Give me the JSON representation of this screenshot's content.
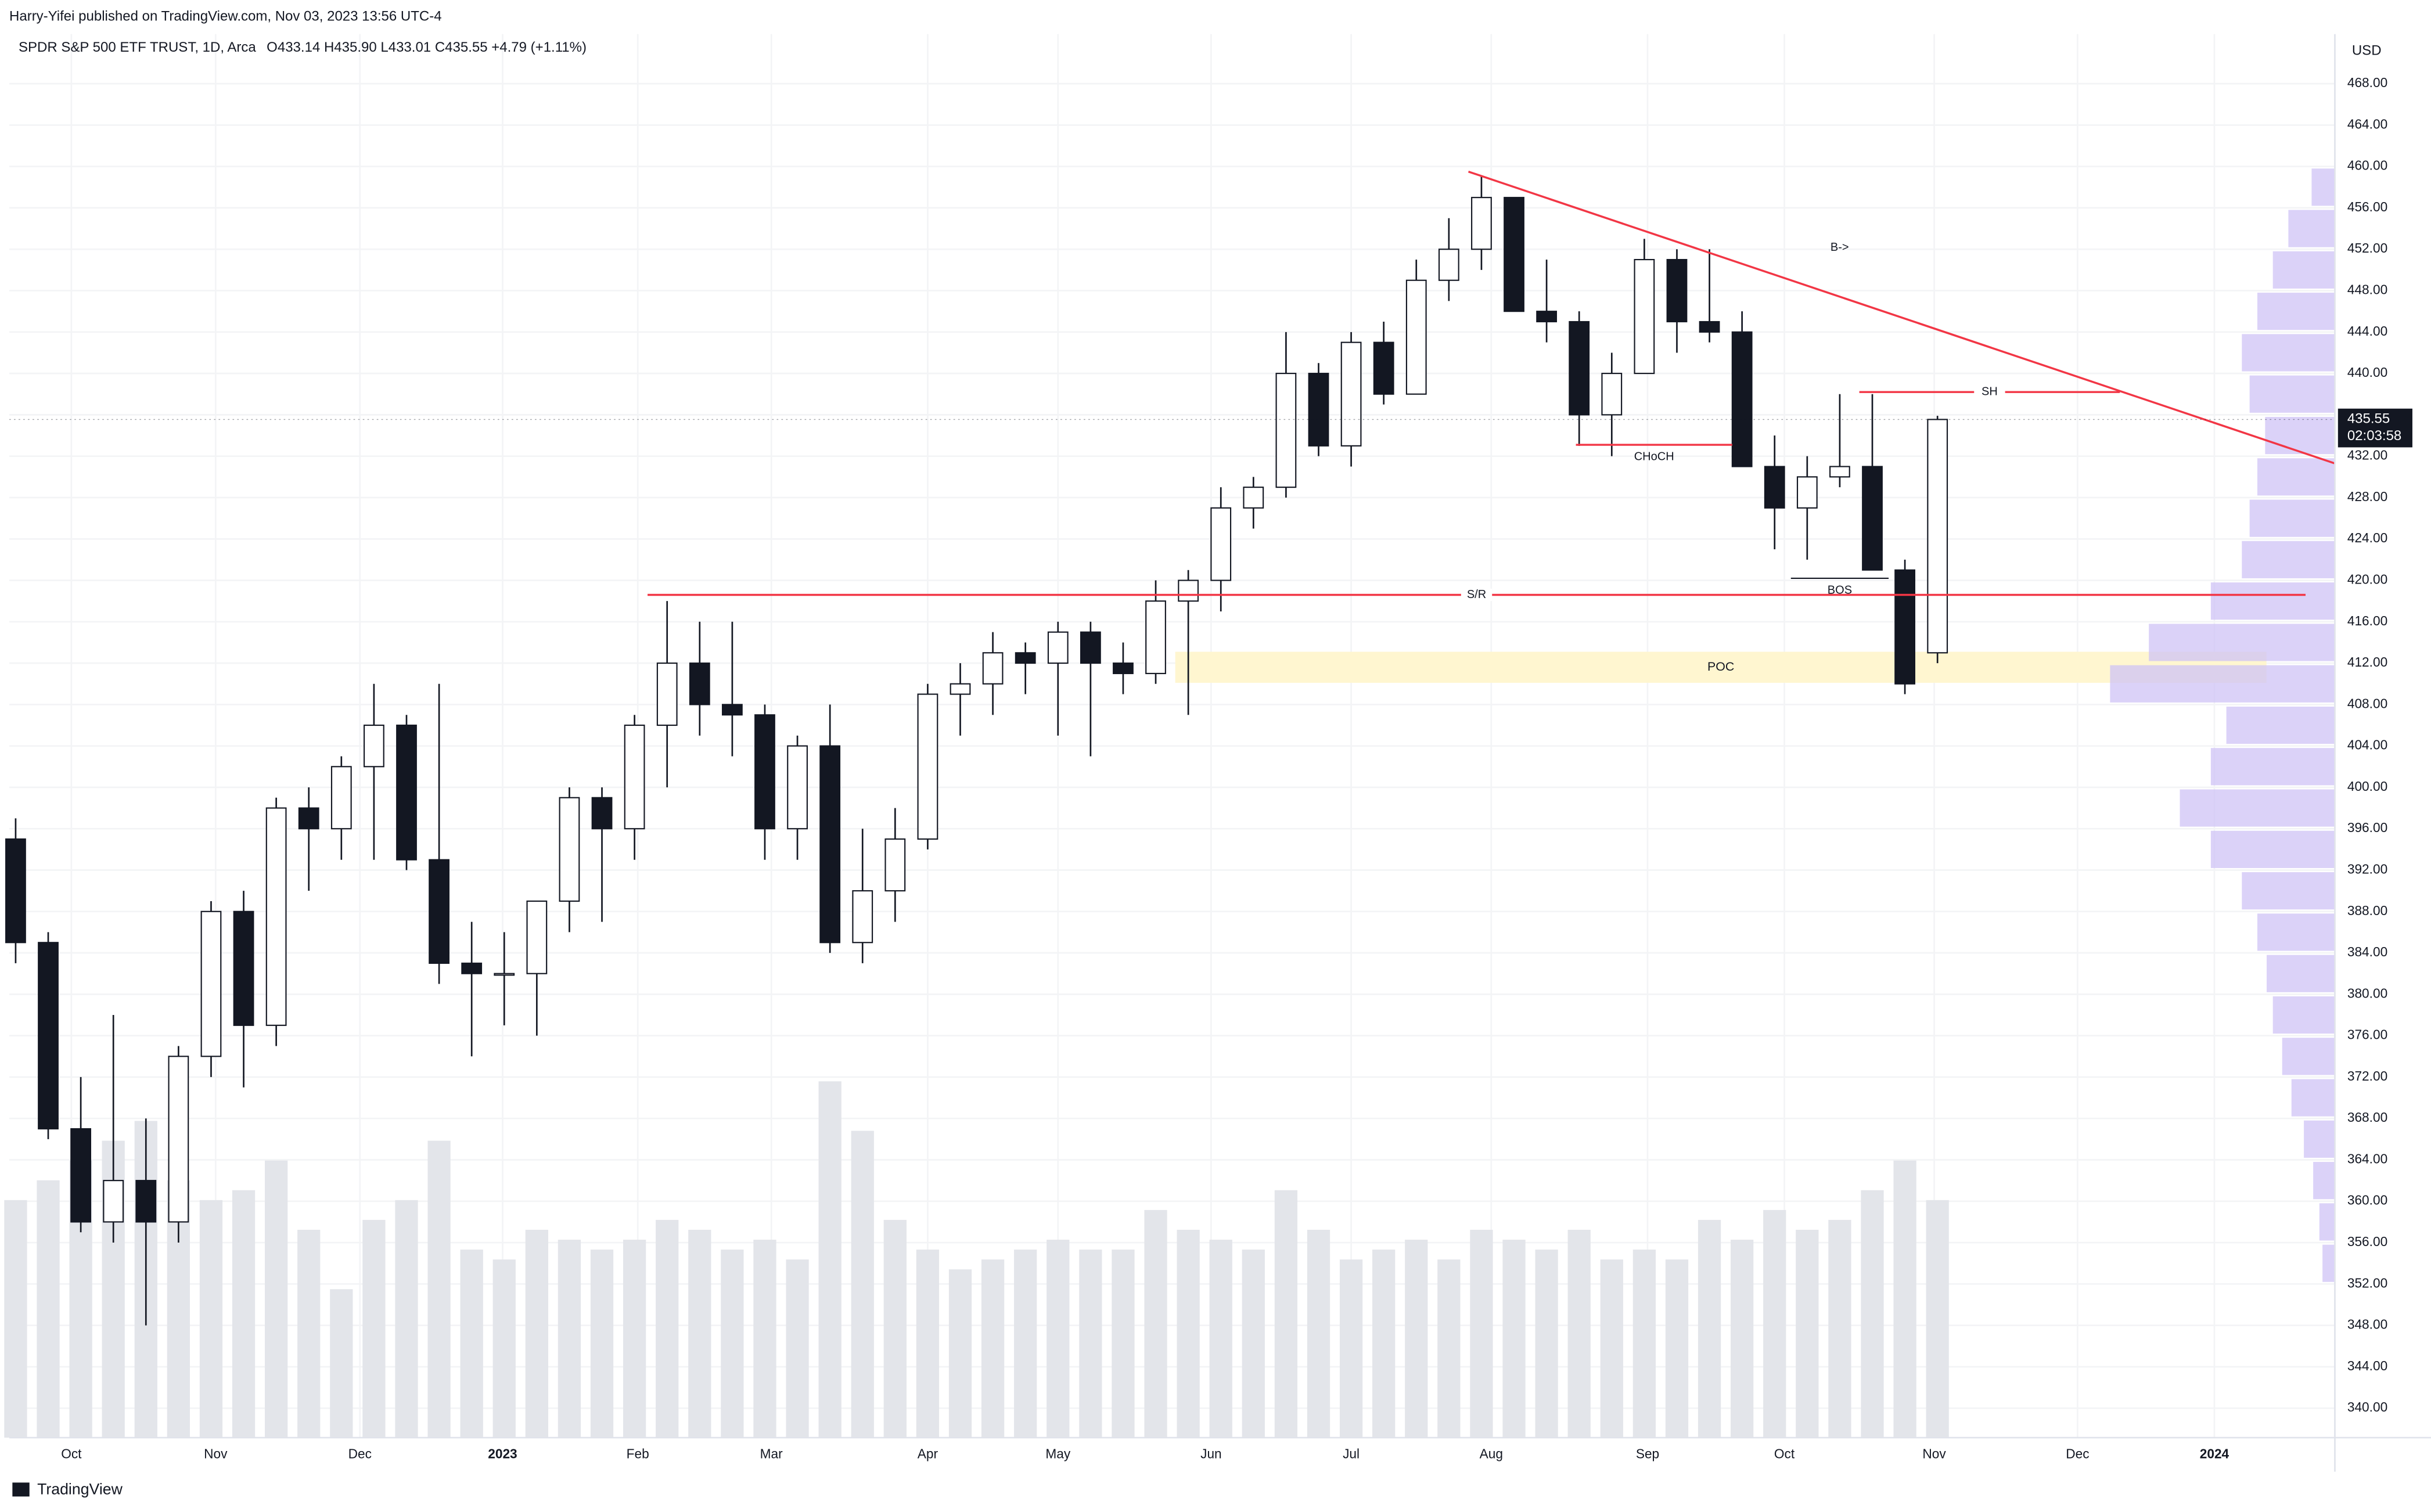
{
  "chart_data": {
    "type": "candlestick",
    "publisher": "Harry-Yifei published on TradingView.com, Nov 03, 2023 13:56 UTC-4",
    "title": "SPDR S&P 500 ETF TRUST, 1D, Arca",
    "ohlc_text": "O433.14  H435.90  L433.01  C435.55  +4.79 (+1.11%)",
    "footer": "TradingView",
    "currency": "USD",
    "last_price": 435.55,
    "countdown": "02:03:58",
    "open": [
      395,
      385,
      367,
      358,
      362,
      358,
      374,
      388,
      377,
      398,
      396,
      402,
      406,
      393,
      383,
      382,
      382,
      389,
      399,
      396,
      406,
      412,
      408,
      407,
      396,
      404,
      385,
      390,
      395,
      409,
      410,
      413,
      412,
      415,
      412,
      411,
      418,
      420,
      427,
      429,
      440,
      433,
      443,
      438,
      449,
      452,
      457,
      446,
      445,
      436,
      440,
      451,
      445,
      444,
      431,
      427,
      430,
      431,
      421,
      413
    ],
    "high": [
      397,
      386,
      372,
      378,
      368,
      375,
      389,
      390,
      399,
      400,
      403,
      410,
      407,
      410,
      387,
      386,
      389,
      400,
      400,
      407,
      418,
      416,
      416,
      408,
      405,
      408,
      396,
      398,
      410,
      412,
      415,
      414,
      416,
      416,
      414,
      420,
      421,
      429,
      430,
      444,
      441,
      444,
      445,
      451,
      455,
      459,
      457,
      451,
      446,
      442,
      453,
      452,
      452,
      446,
      434,
      432,
      438,
      438,
      422,
      435.9
    ],
    "low": [
      383,
      366,
      357,
      356,
      348,
      356,
      372,
      371,
      375,
      390,
      393,
      393,
      392,
      381,
      374,
      377,
      376,
      386,
      387,
      393,
      400,
      405,
      403,
      393,
      393,
      384,
      383,
      387,
      394,
      405,
      407,
      409,
      405,
      403,
      409,
      410,
      407,
      417,
      425,
      428,
      432,
      431,
      437,
      438,
      447,
      450,
      446,
      443,
      433,
      432,
      440,
      442,
      443,
      431,
      423,
      422,
      429,
      421,
      409,
      412
    ],
    "close": [
      385,
      367,
      358,
      362,
      358,
      374,
      388,
      377,
      398,
      396,
      402,
      406,
      393,
      383,
      382,
      382,
      389,
      399,
      396,
      406,
      412,
      408,
      407,
      396,
      404,
      385,
      390,
      395,
      409,
      410,
      413,
      412,
      415,
      412,
      411,
      418,
      420,
      427,
      429,
      440,
      433,
      443,
      438,
      449,
      452,
      457,
      446,
      445,
      436,
      440,
      451,
      445,
      444,
      431,
      427,
      430,
      431,
      421,
      410,
      435.55
    ],
    "volume": [
      480,
      520,
      560,
      600,
      640,
      520,
      480,
      500,
      560,
      420,
      300,
      440,
      480,
      600,
      380,
      360,
      420,
      400,
      380,
      400,
      440,
      420,
      380,
      400,
      360,
      720,
      620,
      440,
      380,
      340,
      360,
      380,
      400,
      380,
      380,
      460,
      420,
      400,
      380,
      500,
      420,
      360,
      380,
      400,
      360,
      420,
      400,
      380,
      420,
      360,
      380,
      360,
      440,
      400,
      460,
      420,
      440,
      500,
      560,
      480
    ],
    "up_color": "#ffffff",
    "down_color": "#131722",
    "volume_color": "#e3e5ea",
    "xlim": [
      -0.48,
      71.2
    ],
    "xticks": [
      {
        "value": 1.71,
        "label": "Oct"
      },
      {
        "value": 6.14,
        "label": "Nov"
      },
      {
        "value": 10.57,
        "label": "Dec"
      },
      {
        "value": 14.95,
        "label": "2023"
      },
      {
        "value": 19.1,
        "label": "Feb"
      },
      {
        "value": 23.2,
        "label": "Mar"
      },
      {
        "value": 28.0,
        "label": "Apr"
      },
      {
        "value": 32.0,
        "label": "May"
      },
      {
        "value": 36.7,
        "label": "Jun"
      },
      {
        "value": 41.0,
        "label": "Jul"
      },
      {
        "value": 45.3,
        "label": "Aug"
      },
      {
        "value": 50.1,
        "label": "Sep"
      },
      {
        "value": 54.3,
        "label": "Oct"
      },
      {
        "value": 58.9,
        "label": "Nov"
      },
      {
        "value": 63.3,
        "label": "Dec"
      },
      {
        "value": 67.5,
        "label": "2024"
      }
    ],
    "ylim": [
      336,
      472
    ],
    "yticks": [
      {
        "value": 340,
        "label": "340.00"
      },
      {
        "value": 344,
        "label": "344.00"
      },
      {
        "value": 348,
        "label": "348.00"
      },
      {
        "value": 352,
        "label": "352.00"
      },
      {
        "value": 356,
        "label": "356.00"
      },
      {
        "value": 360,
        "label": "360.00"
      },
      {
        "value": 364,
        "label": "364.00"
      },
      {
        "value": 368,
        "label": "368.00"
      },
      {
        "value": 372,
        "label": "372.00"
      },
      {
        "value": 376,
        "label": "376.00"
      },
      {
        "value": 380,
        "label": "380.00"
      },
      {
        "value": 384,
        "label": "384.00"
      },
      {
        "value": 388,
        "label": "388.00"
      },
      {
        "value": 392,
        "label": "392.00"
      },
      {
        "value": 396,
        "label": "396.00"
      },
      {
        "value": 400,
        "label": "400.00"
      },
      {
        "value": 404,
        "label": "404.00"
      },
      {
        "value": 408,
        "label": "408.00"
      },
      {
        "value": 412,
        "label": "412.00"
      },
      {
        "value": 416,
        "label": "416.00"
      },
      {
        "value": 420,
        "label": "420.00"
      },
      {
        "value": 424,
        "label": "424.00"
      },
      {
        "value": 428,
        "label": "428.00"
      },
      {
        "value": 432,
        "label": "432.00"
      },
      {
        "value": 436,
        "label": "436.00"
      },
      {
        "value": 440,
        "label": "440.00"
      },
      {
        "value": 444,
        "label": "444.00"
      },
      {
        "value": 448,
        "label": "448.00"
      },
      {
        "value": 452,
        "label": "452.00"
      },
      {
        "value": 456,
        "label": "456.00"
      },
      {
        "value": 460,
        "label": "460.00"
      },
      {
        "value": 464,
        "label": "464.00"
      },
      {
        "value": 468,
        "label": "468.00"
      }
    ],
    "grid": true,
    "annotations": [
      {
        "label": "S/R",
        "x": [
          19.4,
          70.3
        ],
        "y": [
          418.6,
          418.6
        ],
        "color": "#f23645"
      },
      {
        "label": "CHoCH",
        "x": [
          47.9,
          52.7
        ],
        "y": [
          433.1,
          433.1
        ],
        "color": "#f23645"
      },
      {
        "label": "BOS",
        "x": [
          54.5,
          57.5
        ],
        "y": [
          420.2,
          420.2
        ],
        "color": "#131722"
      },
      {
        "label": "SH",
        "x": [
          56.6,
          64.6
        ],
        "y": [
          438.2,
          438.2
        ],
        "color": "#f23645"
      },
      {
        "label": "B->",
        "x": [
          44.6,
          71.2
        ],
        "y": [
          459.5,
          431.3
        ],
        "color": "#f23645"
      }
    ],
    "zone": {
      "label": "POC",
      "x": [
        35.6,
        69.1
      ],
      "y": [
        410.1,
        413.1
      ],
      "color": "#fff6d0"
    },
    "volume_profile": {
      "color": "#cfc3f5",
      "prices": [
        354,
        358,
        362,
        366,
        370,
        374,
        378,
        382,
        386,
        390,
        394,
        398,
        402,
        406,
        410,
        414,
        418,
        422,
        426,
        430,
        434,
        438,
        442,
        446,
        450,
        454,
        458
      ],
      "values": [
        8,
        10,
        14,
        20,
        28,
        34,
        40,
        44,
        50,
        60,
        80,
        100,
        80,
        70,
        145,
        120,
        80,
        60,
        55,
        50,
        45,
        55,
        60,
        50,
        40,
        30,
        15
      ]
    }
  }
}
